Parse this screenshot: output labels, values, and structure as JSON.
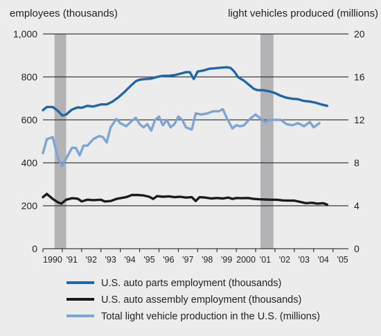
{
  "chart_data": {
    "type": "line",
    "left_axis": {
      "title": "employees (thousands)",
      "ylim": [
        0,
        1000
      ],
      "ticks": [
        "0",
        "200",
        "400",
        "600",
        "800",
        "1,000"
      ]
    },
    "right_axis": {
      "title": "light vehicles produced (millions)",
      "ylim": [
        0,
        20
      ],
      "ticks": [
        "0",
        "4",
        "8",
        "12",
        "16",
        "20"
      ]
    },
    "x_axis": {
      "range": [
        1990,
        2005.8
      ],
      "tick_labels": [
        "1990",
        "'91",
        "'92",
        "'93",
        "'94",
        "'95",
        "'96",
        "'97",
        "'98",
        "'99",
        "2000",
        "'01",
        "'02",
        "'03",
        "'04",
        "'05"
      ]
    },
    "recessions": [
      [
        1990.6,
        1991.2
      ],
      [
        2001.25,
        2001.92
      ]
    ],
    "grid": true,
    "legend_position": "bottom",
    "series": [
      {
        "name": "U.S. auto parts employment (thousands)",
        "axis": "left",
        "color": "#1f66a8",
        "points": [
          [
            1990,
            645
          ],
          [
            1990.2,
            660
          ],
          [
            1990.5,
            660
          ],
          [
            1990.8,
            640
          ],
          [
            1991.0,
            620
          ],
          [
            1991.2,
            625
          ],
          [
            1991.5,
            648
          ],
          [
            1991.8,
            658
          ],
          [
            1992,
            656
          ],
          [
            1992.3,
            665
          ],
          [
            1992.6,
            662
          ],
          [
            1993,
            672
          ],
          [
            1993.3,
            672
          ],
          [
            1993.6,
            685
          ],
          [
            1993.9,
            705
          ],
          [
            1994.2,
            728
          ],
          [
            1994.5,
            755
          ],
          [
            1994.8,
            780
          ],
          [
            1995,
            787
          ],
          [
            1995.3,
            790
          ],
          [
            1995.6,
            792
          ],
          [
            1995.9,
            800
          ],
          [
            1996.2,
            805
          ],
          [
            1996.5,
            805
          ],
          [
            1996.8,
            808
          ],
          [
            1997.1,
            815
          ],
          [
            1997.4,
            822
          ],
          [
            1997.6,
            822
          ],
          [
            1997.8,
            790
          ],
          [
            1998,
            825
          ],
          [
            1998.3,
            830
          ],
          [
            1998.6,
            838
          ],
          [
            1998.9,
            840
          ],
          [
            1999.2,
            843
          ],
          [
            1999.5,
            845
          ],
          [
            1999.7,
            842
          ],
          [
            1999.9,
            825
          ],
          [
            2000.1,
            798
          ],
          [
            2000.4,
            782
          ],
          [
            2000.7,
            760
          ],
          [
            2000.9,
            745
          ],
          [
            2001.1,
            738
          ],
          [
            2001.4,
            738
          ],
          [
            2001.7,
            733
          ],
          [
            2002,
            725
          ],
          [
            2002.3,
            712
          ],
          [
            2002.6,
            703
          ],
          [
            2002.9,
            698
          ],
          [
            2003.2,
            696
          ],
          [
            2003.5,
            688
          ],
          [
            2003.8,
            685
          ],
          [
            2004.1,
            680
          ],
          [
            2004.4,
            672
          ],
          [
            2004.7,
            665
          ]
        ]
      },
      {
        "name": "U.S. auto assembly employment (thousands)",
        "axis": "left",
        "color": "#1a1a1a",
        "points": [
          [
            1990,
            240
          ],
          [
            1990.2,
            255
          ],
          [
            1990.5,
            232
          ],
          [
            1990.8,
            215
          ],
          [
            1990.95,
            210
          ],
          [
            1991.2,
            228
          ],
          [
            1991.5,
            235
          ],
          [
            1991.8,
            233
          ],
          [
            1992,
            220
          ],
          [
            1992.3,
            228
          ],
          [
            1992.6,
            226
          ],
          [
            1993,
            228
          ],
          [
            1993.2,
            220
          ],
          [
            1993.5,
            222
          ],
          [
            1993.8,
            232
          ],
          [
            1994,
            235
          ],
          [
            1994.3,
            240
          ],
          [
            1994.6,
            250
          ],
          [
            1994.9,
            250
          ],
          [
            1995.2,
            248
          ],
          [
            1995.5,
            242
          ],
          [
            1995.7,
            232
          ],
          [
            1995.9,
            245
          ],
          [
            1996.2,
            242
          ],
          [
            1996.5,
            244
          ],
          [
            1996.8,
            240
          ],
          [
            1997.1,
            242
          ],
          [
            1997.4,
            238
          ],
          [
            1997.7,
            240
          ],
          [
            1997.9,
            222
          ],
          [
            1998.1,
            240
          ],
          [
            1998.4,
            238
          ],
          [
            1998.7,
            234
          ],
          [
            1999.0,
            236
          ],
          [
            1999.3,
            234
          ],
          [
            1999.6,
            238
          ],
          [
            1999.8,
            232
          ],
          [
            2000.0,
            236
          ],
          [
            2000.3,
            235
          ],
          [
            2000.6,
            236
          ],
          [
            2000.9,
            232
          ],
          [
            2001.2,
            230
          ],
          [
            2001.5,
            229
          ],
          [
            2001.8,
            228
          ],
          [
            2002.1,
            228
          ],
          [
            2002.4,
            225
          ],
          [
            2002.7,
            224
          ],
          [
            2003.0,
            224
          ],
          [
            2003.3,
            218
          ],
          [
            2003.6,
            212
          ],
          [
            2003.9,
            214
          ],
          [
            2004.2,
            210
          ],
          [
            2004.5,
            212
          ],
          [
            2004.7,
            205
          ]
        ]
      },
      {
        "name": "Total light vehicle production in the U.S. (millions)",
        "axis": "right",
        "color": "#7ca4d4",
        "points": [
          [
            1990,
            8.9
          ],
          [
            1990.2,
            10.2
          ],
          [
            1990.5,
            10.4
          ],
          [
            1990.8,
            8.3
          ],
          [
            1991.0,
            7.7
          ],
          [
            1991.2,
            8.4
          ],
          [
            1991.5,
            9.4
          ],
          [
            1991.7,
            9.4
          ],
          [
            1991.9,
            8.7
          ],
          [
            1992.1,
            9.6
          ],
          [
            1992.3,
            9.6
          ],
          [
            1992.6,
            10.2
          ],
          [
            1992.9,
            10.5
          ],
          [
            1993.1,
            10.4
          ],
          [
            1993.3,
            9.9
          ],
          [
            1993.5,
            11.3
          ],
          [
            1993.8,
            12.1
          ],
          [
            1994.0,
            11.7
          ],
          [
            1994.3,
            11.4
          ],
          [
            1994.6,
            11.9
          ],
          [
            1994.8,
            12.2
          ],
          [
            1995.0,
            11.6
          ],
          [
            1995.2,
            11.3
          ],
          [
            1995.4,
            11.6
          ],
          [
            1995.6,
            11.0
          ],
          [
            1995.8,
            12.0
          ],
          [
            1996.0,
            12.3
          ],
          [
            1996.2,
            11.5
          ],
          [
            1996.4,
            12.0
          ],
          [
            1996.6,
            11.3
          ],
          [
            1996.8,
            11.6
          ],
          [
            1997.0,
            12.3
          ],
          [
            1997.2,
            12.0
          ],
          [
            1997.4,
            11.3
          ],
          [
            1997.7,
            11.1
          ],
          [
            1997.9,
            12.6
          ],
          [
            1998.2,
            12.5
          ],
          [
            1998.5,
            12.6
          ],
          [
            1998.8,
            12.8
          ],
          [
            1999.1,
            12.8
          ],
          [
            1999.3,
            13.0
          ],
          [
            1999.5,
            12.2
          ],
          [
            1999.8,
            11.2
          ],
          [
            2000.0,
            11.5
          ],
          [
            2000.2,
            11.4
          ],
          [
            2000.4,
            11.5
          ],
          [
            2000.7,
            12.1
          ],
          [
            2001.0,
            12.5
          ],
          [
            2001.2,
            12.2
          ],
          [
            2001.5,
            11.8
          ],
          [
            2001.7,
            12.0
          ],
          [
            2002.0,
            12.0
          ],
          [
            2002.3,
            12.0
          ],
          [
            2002.6,
            11.6
          ],
          [
            2002.9,
            11.5
          ],
          [
            2003.2,
            11.7
          ],
          [
            2003.5,
            11.4
          ],
          [
            2003.8,
            11.8
          ],
          [
            2004.0,
            11.3
          ],
          [
            2004.3,
            11.7
          ]
        ]
      }
    ]
  }
}
